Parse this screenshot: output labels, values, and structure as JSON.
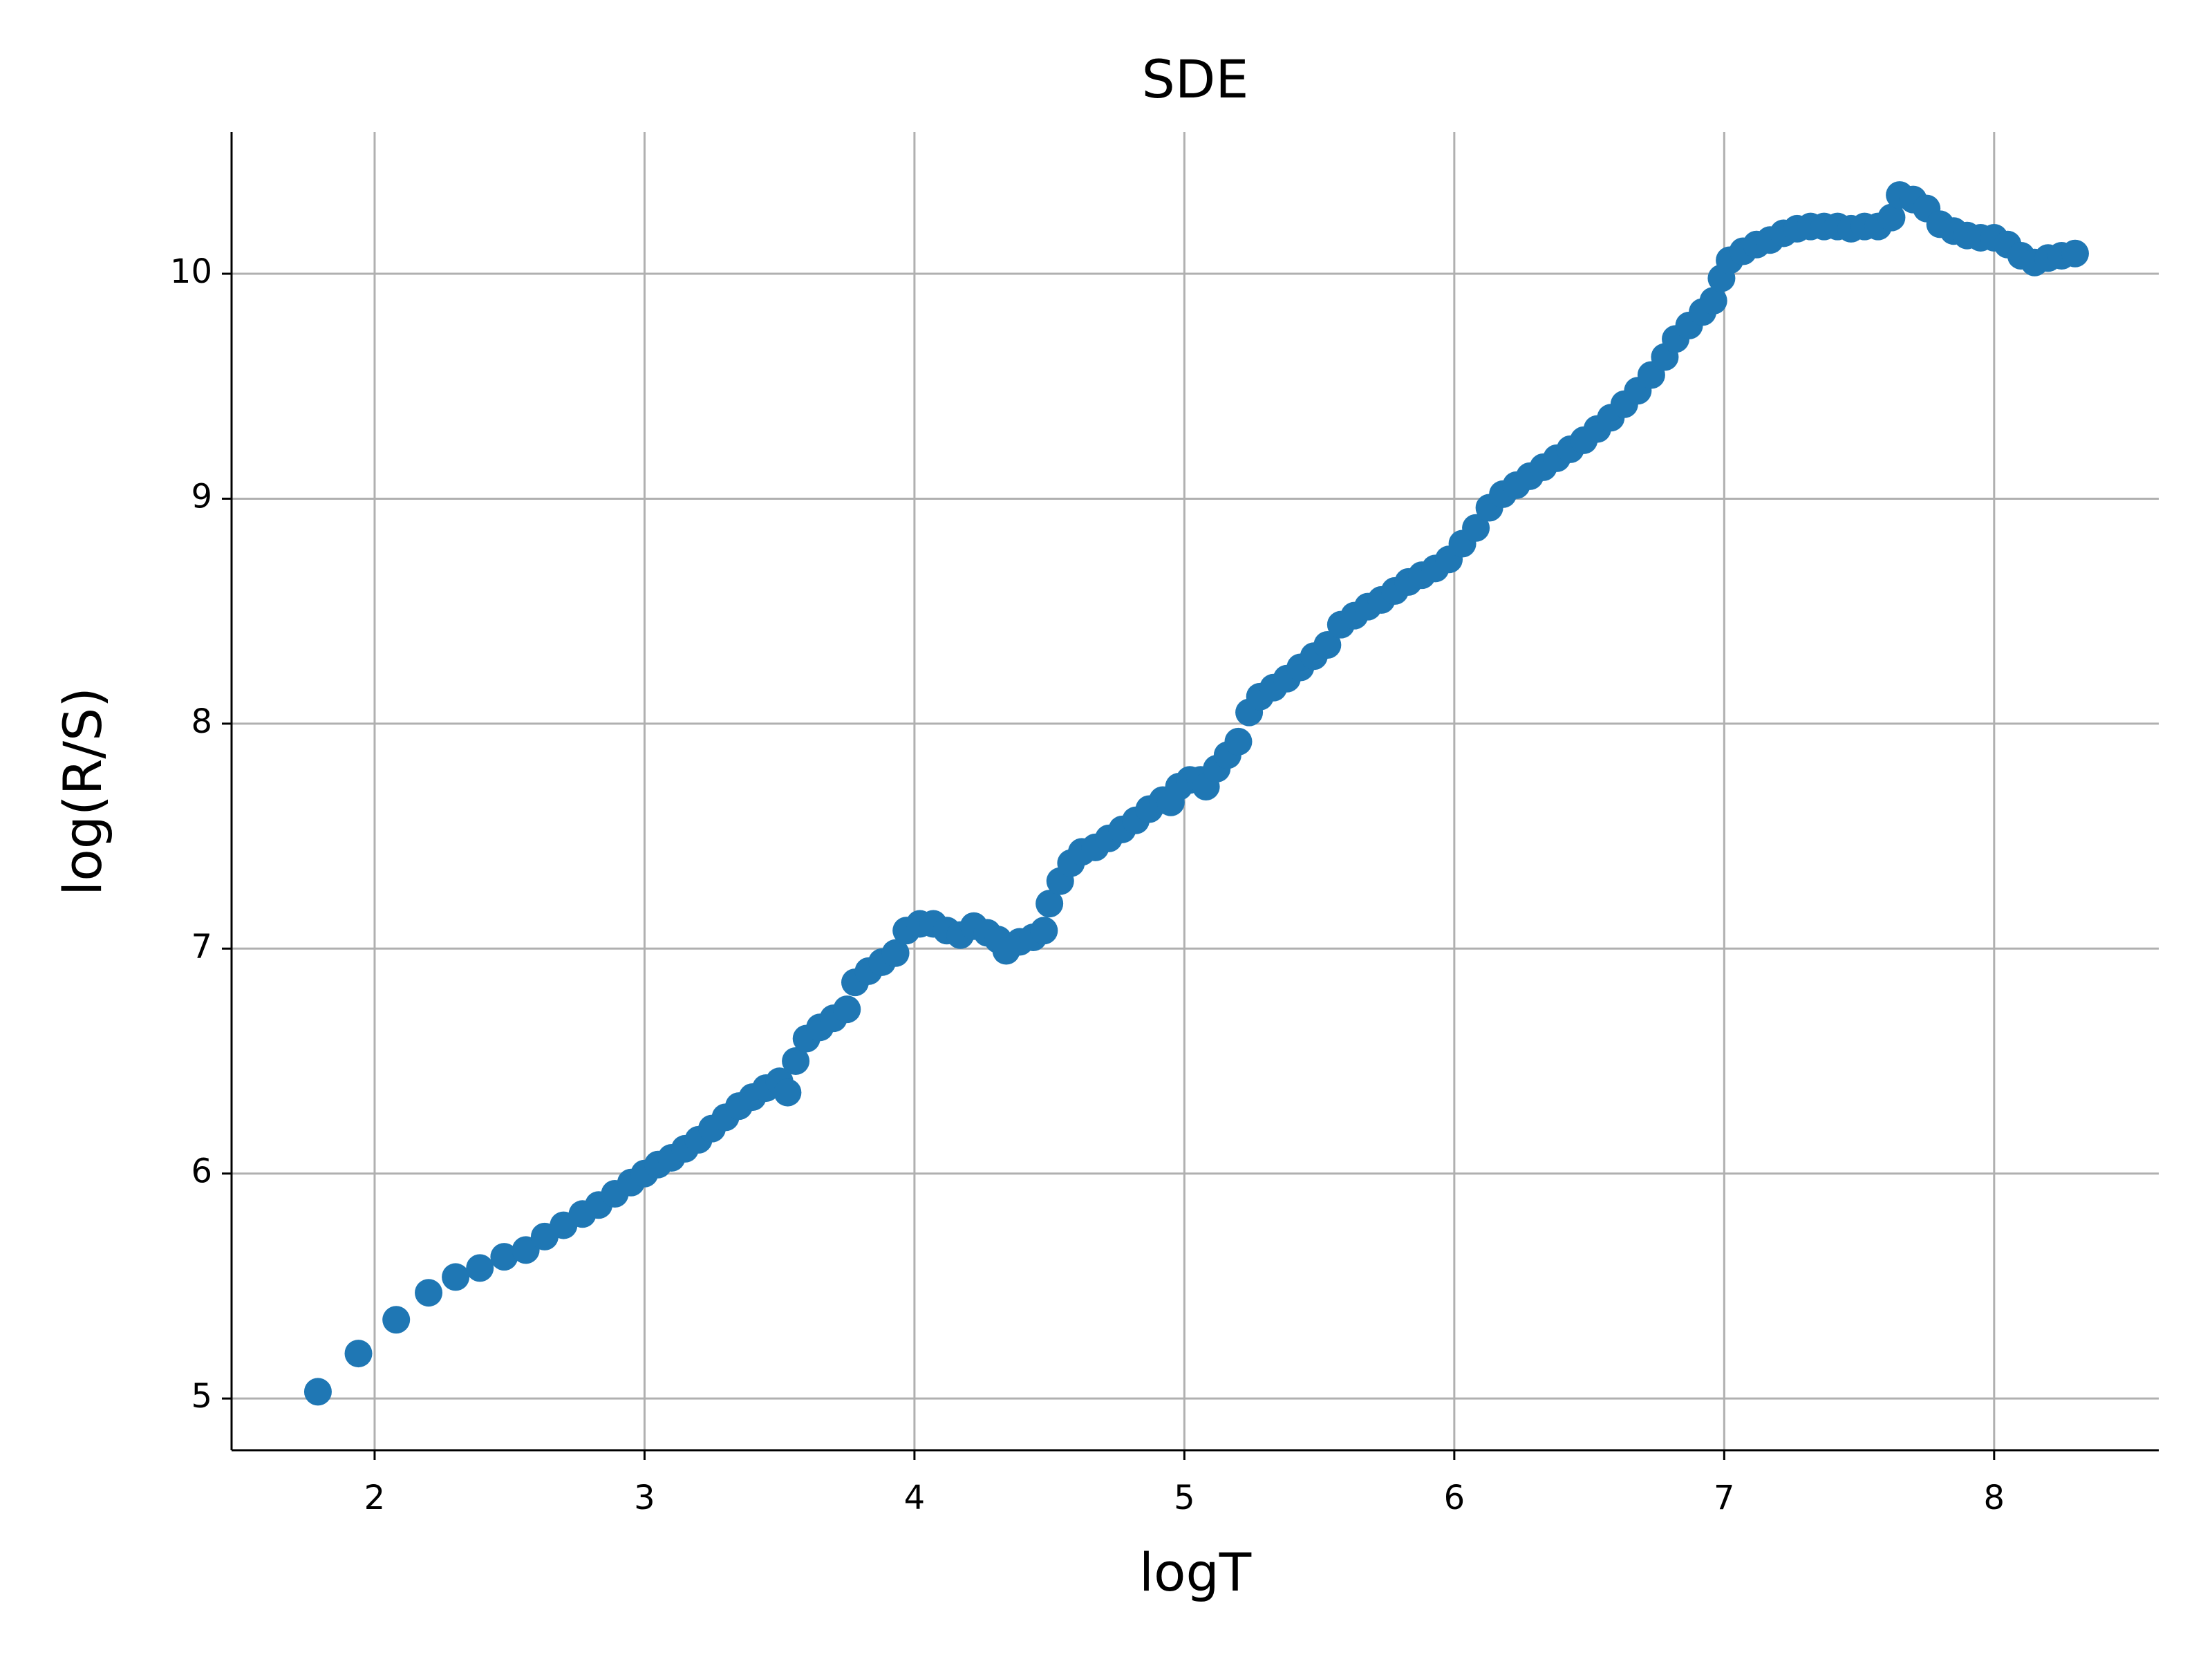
{
  "chart_data": {
    "type": "scatter",
    "title": "SDE",
    "x_label": "logT",
    "y_label": "log(R/S)",
    "color": "#1f77b4",
    "grid": true,
    "xlim": [
      1.47,
      8.61
    ],
    "ylim": [
      4.77,
      10.63
    ],
    "xticks": [
      2,
      3,
      4,
      5,
      6,
      7,
      8
    ],
    "yticks": [
      5,
      6,
      7,
      8,
      9,
      10
    ],
    "x": [
      1.79,
      1.94,
      2.08,
      2.2,
      2.3,
      2.39,
      2.48,
      2.56,
      2.63,
      2.7,
      2.77,
      2.83,
      2.89,
      2.95,
      3.0,
      3.05,
      3.1,
      3.15,
      3.2,
      3.25,
      3.3,
      3.35,
      3.4,
      3.45,
      3.5,
      3.53,
      3.56,
      3.6,
      3.65,
      3.7,
      3.75,
      3.78,
      3.83,
      3.88,
      3.93,
      3.97,
      4.02,
      4.07,
      4.12,
      4.17,
      4.22,
      4.27,
      4.31,
      4.34,
      4.39,
      4.44,
      4.48,
      4.5,
      4.54,
      4.58,
      4.62,
      4.67,
      4.72,
      4.77,
      4.82,
      4.87,
      4.92,
      4.95,
      4.98,
      5.02,
      5.06,
      5.08,
      5.12,
      5.16,
      5.2,
      5.24,
      5.28,
      5.33,
      5.38,
      5.43,
      5.48,
      5.53,
      5.58,
      5.63,
      5.68,
      5.73,
      5.78,
      5.83,
      5.88,
      5.93,
      5.98,
      6.03,
      6.08,
      6.13,
      6.18,
      6.23,
      6.28,
      6.33,
      6.38,
      6.43,
      6.48,
      6.53,
      6.58,
      6.63,
      6.68,
      6.73,
      6.78,
      6.82,
      6.87,
      6.92,
      6.96,
      6.99,
      7.02,
      7.07,
      7.12,
      7.17,
      7.22,
      7.27,
      7.32,
      7.37,
      7.42,
      7.47,
      7.52,
      7.57,
      7.62,
      7.65,
      7.7,
      7.75,
      7.8,
      7.85,
      7.9,
      7.95,
      8.0,
      8.05,
      8.1,
      8.15,
      8.2,
      8.25,
      8.3
    ],
    "values": [
      5.03,
      5.2,
      5.35,
      5.47,
      5.54,
      5.58,
      5.63,
      5.66,
      5.72,
      5.77,
      5.82,
      5.86,
      5.91,
      5.96,
      6.0,
      6.04,
      6.07,
      6.11,
      6.15,
      6.2,
      6.25,
      6.3,
      6.34,
      6.38,
      6.41,
      6.36,
      6.5,
      6.6,
      6.65,
      6.69,
      6.73,
      6.85,
      6.9,
      6.94,
      6.98,
      7.08,
      7.11,
      7.11,
      7.08,
      7.06,
      7.1,
      7.07,
      7.04,
      6.99,
      7.03,
      7.05,
      7.08,
      7.2,
      7.3,
      7.38,
      7.43,
      7.45,
      7.49,
      7.53,
      7.57,
      7.62,
      7.66,
      7.65,
      7.72,
      7.75,
      7.75,
      7.72,
      7.8,
      7.86,
      7.92,
      8.05,
      8.12,
      8.16,
      8.2,
      8.25,
      8.3,
      8.35,
      8.44,
      8.48,
      8.52,
      8.55,
      8.59,
      8.63,
      8.66,
      8.69,
      8.73,
      8.8,
      8.87,
      8.96,
      9.02,
      9.06,
      9.1,
      9.14,
      9.18,
      9.22,
      9.26,
      9.31,
      9.36,
      9.42,
      9.48,
      9.55,
      9.63,
      9.71,
      9.77,
      9.83,
      9.88,
      9.98,
      10.06,
      10.1,
      10.13,
      10.15,
      10.18,
      10.2,
      10.21,
      10.21,
      10.21,
      10.2,
      10.21,
      10.21,
      10.25,
      10.35,
      10.33,
      10.29,
      10.22,
      10.19,
      10.17,
      10.16,
      10.16,
      10.13,
      10.08,
      10.05,
      10.07,
      10.08,
      10.09
    ]
  }
}
